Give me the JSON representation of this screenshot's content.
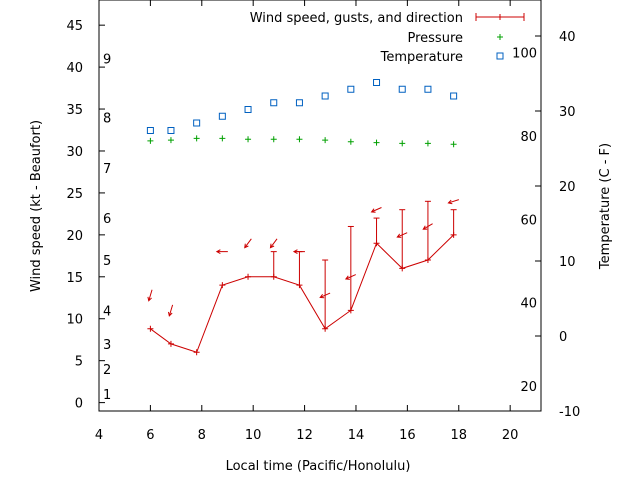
{
  "chart_data": {
    "type": "line",
    "xlabel": "Local time (Pacific/Honolulu)",
    "ylabel_left": "Wind speed (kt - Beaufort)",
    "ylabel_right": "Temperature (C - F)",
    "x_ticks": [
      4,
      6,
      8,
      10,
      12,
      14,
      16,
      18,
      20
    ],
    "xlim": [
      4,
      21.2
    ],
    "y_left_ticks": [
      0,
      5,
      10,
      15,
      20,
      25,
      30,
      35,
      40,
      45
    ],
    "ylim_left": [
      -1,
      48
    ],
    "beaufort_labels": [
      {
        "label": "1",
        "kt": 1
      },
      {
        "label": "2",
        "kt": 4
      },
      {
        "label": "3",
        "kt": 7
      },
      {
        "label": "4",
        "kt": 11
      },
      {
        "label": "5",
        "kt": 17
      },
      {
        "label": "6",
        "kt": 22
      },
      {
        "label": "7",
        "kt": 28
      },
      {
        "label": "8",
        "kt": 34
      },
      {
        "label": "9",
        "kt": 41
      }
    ],
    "y_right_c_ticks": [
      -10,
      0,
      10,
      20,
      30,
      40
    ],
    "ylim_right_c": [
      -10,
      44.8
    ],
    "y_right_f_ticks": [
      20,
      40,
      60,
      80,
      100
    ],
    "legend_placement": "top-right",
    "colors": {
      "wind": "#cc0000",
      "pressure": "#00a000",
      "temperature": "#0060c0"
    },
    "series": [
      {
        "name": "Wind speed, gusts, and direction",
        "points": [
          {
            "x": 6.0,
            "speed": 8.8,
            "gust": 8.8,
            "dir_dx": 0.3,
            "dir_dy": 1.0
          },
          {
            "x": 6.8,
            "speed": 7.0,
            "gust": 7.0,
            "dir_dx": 0.3,
            "dir_dy": 1.0
          },
          {
            "x": 7.8,
            "speed": 6.0,
            "gust": 6.0,
            "dir_dx": 0,
            "dir_dy": 0
          },
          {
            "x": 8.8,
            "speed": 14.0,
            "gust": 14.0,
            "dir_dx": 1.0,
            "dir_dy": 0
          },
          {
            "x": 9.8,
            "speed": 15.0,
            "gust": 15.0,
            "dir_dx": 0.6,
            "dir_dy": 0.8
          },
          {
            "x": 10.8,
            "speed": 15.0,
            "gust": 18.0,
            "dir_dx": 0.6,
            "dir_dy": 0.8
          },
          {
            "x": 11.8,
            "speed": 14.0,
            "gust": 18.0,
            "dir_dx": 1.0,
            "dir_dy": 0
          },
          {
            "x": 12.8,
            "speed": 8.8,
            "gust": 17.0,
            "dir_dx": 0.9,
            "dir_dy": 0.4
          },
          {
            "x": 13.8,
            "speed": 11.0,
            "gust": 21.0,
            "dir_dx": 0.9,
            "dir_dy": 0.4
          },
          {
            "x": 14.8,
            "speed": 19.0,
            "gust": 22.0,
            "dir_dx": 0.9,
            "dir_dy": 0.4
          },
          {
            "x": 15.8,
            "speed": 16.0,
            "gust": 23.0,
            "dir_dx": 0.9,
            "dir_dy": 0.4
          },
          {
            "x": 16.8,
            "speed": 17.0,
            "gust": 24.0,
            "dir_dx": 0.85,
            "dir_dy": 0.5
          },
          {
            "x": 17.8,
            "speed": 20.0,
            "gust": 23.0,
            "dir_dx": 0.95,
            "dir_dy": 0.3
          }
        ]
      },
      {
        "name": "Pressure",
        "axis": "left",
        "points": [
          {
            "x": 6.0,
            "y": 31.2
          },
          {
            "x": 6.8,
            "y": 31.3
          },
          {
            "x": 7.8,
            "y": 31.5
          },
          {
            "x": 8.8,
            "y": 31.5
          },
          {
            "x": 9.8,
            "y": 31.4
          },
          {
            "x": 10.8,
            "y": 31.4
          },
          {
            "x": 11.8,
            "y": 31.4
          },
          {
            "x": 12.8,
            "y": 31.3
          },
          {
            "x": 13.8,
            "y": 31.1
          },
          {
            "x": 14.8,
            "y": 31.0
          },
          {
            "x": 15.8,
            "y": 30.9
          },
          {
            "x": 16.8,
            "y": 30.9
          },
          {
            "x": 17.8,
            "y": 30.8
          }
        ]
      },
      {
        "name": "Temperature",
        "axis": "right",
        "points": [
          {
            "x": 6.0,
            "y": 27.4
          },
          {
            "x": 6.8,
            "y": 27.4
          },
          {
            "x": 7.8,
            "y": 28.4
          },
          {
            "x": 8.8,
            "y": 29.3
          },
          {
            "x": 9.8,
            "y": 30.2
          },
          {
            "x": 10.8,
            "y": 31.1
          },
          {
            "x": 11.8,
            "y": 31.1
          },
          {
            "x": 12.8,
            "y": 32.0
          },
          {
            "x": 13.8,
            "y": 32.9
          },
          {
            "x": 14.8,
            "y": 33.8
          },
          {
            "x": 15.8,
            "y": 32.9
          },
          {
            "x": 16.8,
            "y": 32.9
          },
          {
            "x": 17.8,
            "y": 32.0
          }
        ]
      }
    ]
  }
}
